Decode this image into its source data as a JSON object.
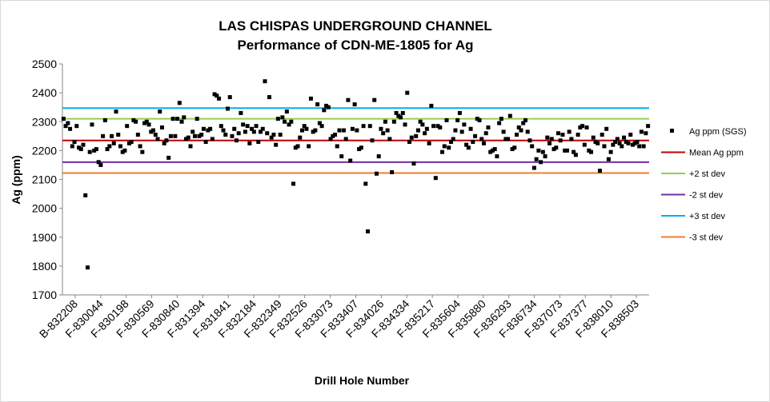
{
  "chart_data": {
    "type": "scatter",
    "title": "LAS CHISPAS UNDERGROUND CHANNEL",
    "subtitle": "Performance of CDN-ME-1805 for Ag",
    "xlabel": "Drill Hole Number",
    "ylabel": "Ag (ppm)",
    "ylim": [
      1700,
      2500
    ],
    "yticks": [
      1700,
      1800,
      1900,
      2000,
      2100,
      2200,
      2300,
      2400,
      2500
    ],
    "grid": false,
    "legend_position": "right",
    "x_tick_labels": [
      "B-832208",
      "F-830044",
      "F-830198",
      "F-830569",
      "F-830840",
      "F-831394",
      "F-831841",
      "F-832184",
      "F-832349",
      "F-832526",
      "F-833073",
      "F-833407",
      "F-834026",
      "F-834334",
      "F-835217",
      "F-835604",
      "F-835880",
      "F-836293",
      "F-836734",
      "F-837073",
      "F-837377",
      "F-838010",
      "F-838503"
    ],
    "series": [
      {
        "name": "Ag ppm (SGS)",
        "color": "#000000",
        "marker": "square",
        "values": [
          2310,
          2285,
          2295,
          2275,
          2215,
          2230,
          2285,
          2210,
          2205,
          2220,
          2045,
          1795,
          2195,
          2290,
          2200,
          2205,
          2160,
          2150,
          2250,
          2305,
          2205,
          2215,
          2250,
          2225,
          2335,
          2255,
          2215,
          2195,
          2200,
          2285,
          2225,
          2230,
          2305,
          2300,
          2255,
          2215,
          2195,
          2295,
          2300,
          2290,
          2265,
          2270,
          2255,
          2240,
          2335,
          2280,
          2225,
          2235,
          2175,
          2250,
          2310,
          2250,
          2310,
          2365,
          2300,
          2315,
          2240,
          2245,
          2215,
          2265,
          2250,
          2310,
          2250,
          2255,
          2275,
          2230,
          2270,
          2275,
          2240,
          2395,
          2390,
          2380,
          2285,
          2270,
          2255,
          2345,
          2385,
          2250,
          2275,
          2235,
          2260,
          2330,
          2290,
          2265,
          2285,
          2225,
          2275,
          2265,
          2285,
          2230,
          2265,
          2275,
          2440,
          2260,
          2385,
          2245,
          2255,
          2220,
          2310,
          2255,
          2315,
          2300,
          2335,
          2290,
          2300,
          2085,
          2210,
          2215,
          2245,
          2270,
          2285,
          2275,
          2215,
          2380,
          2265,
          2270,
          2360,
          2295,
          2285,
          2340,
          2355,
          2350,
          2240,
          2250,
          2255,
          2215,
          2270,
          2180,
          2270,
          2240,
          2375,
          2165,
          2275,
          2360,
          2270,
          2205,
          2210,
          2285,
          2085,
          1920,
          2285,
          2235,
          2375,
          2120,
          2180,
          2275,
          2260,
          2300,
          2270,
          2240,
          2125,
          2300,
          2330,
          2320,
          2315,
          2330,
          2290,
          2400,
          2230,
          2245,
          2155,
          2250,
          2270,
          2300,
          2290,
          2260,
          2275,
          2225,
          2355,
          2285,
          2105,
          2285,
          2280,
          2195,
          2215,
          2305,
          2210,
          2230,
          2240,
          2270,
          2305,
          2330,
          2265,
          2290,
          2220,
          2210,
          2275,
          2230,
          2250,
          2310,
          2305,
          2240,
          2225,
          2260,
          2280,
          2195,
          2200,
          2205,
          2180,
          2295,
          2310,
          2265,
          2240,
          2240,
          2320,
          2205,
          2210,
          2255,
          2280,
          2270,
          2295,
          2305,
          2265,
          2235,
          2215,
          2140,
          2170,
          2200,
          2160,
          2195,
          2180,
          2245,
          2225,
          2240,
          2205,
          2210,
          2260,
          2235,
          2255,
          2200,
          2200,
          2265,
          2240,
          2195,
          2185,
          2255,
          2280,
          2285,
          2220,
          2280,
          2200,
          2195,
          2245,
          2230,
          2225,
          2130,
          2255,
          2215,
          2275,
          2170,
          2195,
          2220,
          2230,
          2240,
          2225,
          2215,
          2245,
          2230,
          2225,
          2255,
          2220,
          2225,
          2230,
          2215,
          2265,
          2215,
          2260,
          2285
        ]
      },
      {
        "name": "Mean Ag ppm",
        "color": "#c00000",
        "value": 2235
      },
      {
        "name": "+2 st dev",
        "color": "#92d050",
        "value": 2310
      },
      {
        "name": "-2 st dev",
        "color": "#7030a0",
        "value": 2160
      },
      {
        "name": "+3 st dev",
        "color": "#00b0f0",
        "value": 2347
      },
      {
        "name": "-3 st dev",
        "color": "#ed7d31",
        "value": 2122
      }
    ]
  }
}
